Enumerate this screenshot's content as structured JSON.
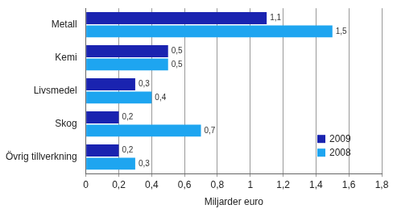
{
  "chart_data": {
    "type": "bar",
    "orientation": "horizontal",
    "categories": [
      "Metall",
      "Kemi",
      "Livsmedel",
      "Skog",
      "Övrig tillverkning"
    ],
    "series": [
      {
        "name": "2009",
        "color": "#1a23b0",
        "values": [
          1.1,
          0.5,
          0.3,
          0.2,
          0.2
        ],
        "value_labels": [
          "1,1",
          "0,5",
          "0,3",
          "0,2",
          "0,2"
        ]
      },
      {
        "name": "2008",
        "color": "#1ea5f0",
        "values": [
          1.5,
          0.5,
          0.4,
          0.7,
          0.3
        ],
        "value_labels": [
          "1,5",
          "0,5",
          "0,4",
          "0,7",
          "0,3"
        ]
      }
    ],
    "x_label": "Miljarder euro",
    "xlim": [
      0,
      1.8
    ],
    "xticks": [
      0,
      {
        "value": 0.2,
        "label": "0,2"
      },
      {
        "value": 0.4,
        "label": "0,4"
      },
      {
        "value": 0.6,
        "label": "0,6"
      },
      {
        "value": 0.8,
        "label": "0,8"
      },
      1,
      {
        "value": 1.2,
        "label": "1,2"
      },
      {
        "value": 1.4,
        "label": "1,4"
      },
      {
        "value": 1.6,
        "label": "1,6"
      },
      {
        "value": 1.8,
        "label": "1,8"
      }
    ],
    "grid": true,
    "data_labels": true,
    "legend": "lower right"
  }
}
